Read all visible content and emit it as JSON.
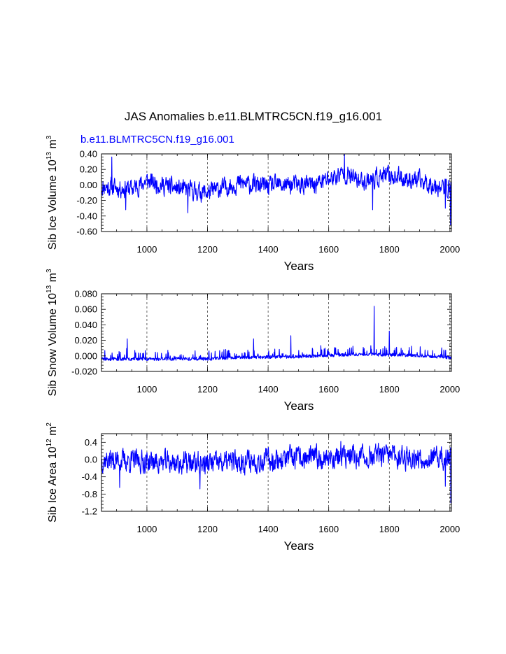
{
  "title": "JAS Anomalies b.e11.BLMTRC5CN.f19_g16.001",
  "series_label": "b.e11.BLMTRC5CN.f19_g16.001",
  "line_color": "#0000ff",
  "chart_data": [
    {
      "type": "line",
      "id": "ice_volume",
      "ylabel_main": "Sib Ice Volume 10",
      "ylabel_exp": "13",
      "ylabel_unit": " m",
      "ylabel_unit_exp": "3",
      "xlabel": "Years",
      "xlim": [
        850,
        2005
      ],
      "ylim": [
        -0.6,
        0.4
      ],
      "x_ticks": [
        1000,
        1200,
        1400,
        1600,
        1800,
        2000
      ],
      "x_tick_labels": [
        "1000",
        "1200",
        "1400",
        "1600",
        "1800",
        "2000"
      ],
      "y_ticks": [
        -0.6,
        -0.4,
        -0.2,
        0.0,
        0.2,
        0.4
      ],
      "y_tick_labels": [
        "-0.60",
        "-0.40",
        "-0.20",
        "0.00",
        "0.20",
        "0.40"
      ],
      "generator": {
        "seed": 11,
        "baseline": [
          [
            850,
            -0.02
          ],
          [
            950,
            -0.05
          ],
          [
            1000,
            0.05
          ],
          [
            1100,
            -0.05
          ],
          [
            1200,
            -0.1
          ],
          [
            1300,
            0.02
          ],
          [
            1400,
            -0.02
          ],
          [
            1450,
            0.0
          ],
          [
            1550,
            0.0
          ],
          [
            1650,
            0.15
          ],
          [
            1700,
            0.05
          ],
          [
            1800,
            0.12
          ],
          [
            1900,
            0.05
          ],
          [
            2000,
            -0.05
          ]
        ],
        "amplitude": 0.1,
        "extremes": [
          [
            884,
            0.36
          ],
          [
            930,
            -0.32
          ],
          [
            1135,
            -0.36
          ],
          [
            1652,
            0.4
          ],
          [
            1745,
            -0.32
          ],
          [
            1985,
            -0.3
          ],
          [
            2002,
            -0.52
          ]
        ],
        "clip": [
          -0.6,
          0.4
        ],
        "mode": "sym"
      }
    },
    {
      "type": "line",
      "id": "snow_volume",
      "ylabel_main": "Sib Snow Volume 10",
      "ylabel_exp": "13",
      "ylabel_unit": " m",
      "ylabel_unit_exp": "3",
      "xlabel": "Years",
      "xlim": [
        850,
        2005
      ],
      "ylim": [
        -0.02,
        0.08
      ],
      "x_ticks": [
        1000,
        1200,
        1400,
        1600,
        1800,
        2000
      ],
      "x_tick_labels": [
        "1000",
        "1200",
        "1400",
        "1600",
        "1800",
        "2000"
      ],
      "y_ticks": [
        -0.02,
        0.0,
        0.02,
        0.04,
        0.06,
        0.08
      ],
      "y_tick_labels": [
        "-0.020",
        "0.000",
        "0.020",
        "0.040",
        "0.060",
        "0.080"
      ],
      "generator": {
        "seed": 23,
        "baseline": [
          [
            850,
            0.0
          ],
          [
            1200,
            0.0
          ],
          [
            1300,
            0.002
          ],
          [
            1500,
            0.003
          ],
          [
            1700,
            0.006
          ],
          [
            1850,
            0.005
          ],
          [
            2000,
            0.002
          ]
        ],
        "amplitude": 0.012,
        "extremes": [
          [
            935,
            0.022
          ],
          [
            1352,
            0.022
          ],
          [
            1475,
            0.026
          ],
          [
            1750,
            0.064
          ],
          [
            1800,
            0.032
          ]
        ],
        "clip": [
          -0.008,
          0.08
        ],
        "mode": "pos"
      }
    },
    {
      "type": "line",
      "id": "ice_area",
      "ylabel_main": "Sib Ice Area 10",
      "ylabel_exp": "12",
      "ylabel_unit": " m",
      "ylabel_unit_exp": "2",
      "xlabel": "Years",
      "xlim": [
        850,
        2005
      ],
      "ylim": [
        -1.2,
        0.6
      ],
      "x_ticks": [
        1000,
        1200,
        1400,
        1600,
        1800,
        2000
      ],
      "x_tick_labels": [
        "1000",
        "1200",
        "1400",
        "1600",
        "1800",
        "2000"
      ],
      "y_ticks": [
        -1.2,
        -0.8,
        -0.4,
        0.0,
        0.4
      ],
      "y_tick_labels": [
        "-1.2",
        "-0.8",
        "-0.4",
        "0.0",
        "0.4"
      ],
      "generator": {
        "seed": 37,
        "baseline": [
          [
            850,
            0.0
          ],
          [
            1000,
            -0.05
          ],
          [
            1200,
            -0.1
          ],
          [
            1400,
            0.0
          ],
          [
            1600,
            0.05
          ],
          [
            1800,
            0.08
          ],
          [
            2000,
            0.0
          ]
        ],
        "amplitude": 0.22,
        "extremes": [
          [
            910,
            -0.65
          ],
          [
            1175,
            -0.68
          ],
          [
            1640,
            0.42
          ],
          [
            1985,
            -0.62
          ],
          [
            2003,
            -1.0
          ]
        ],
        "clip": [
          -1.2,
          0.5
        ],
        "mode": "sym"
      }
    }
  ]
}
